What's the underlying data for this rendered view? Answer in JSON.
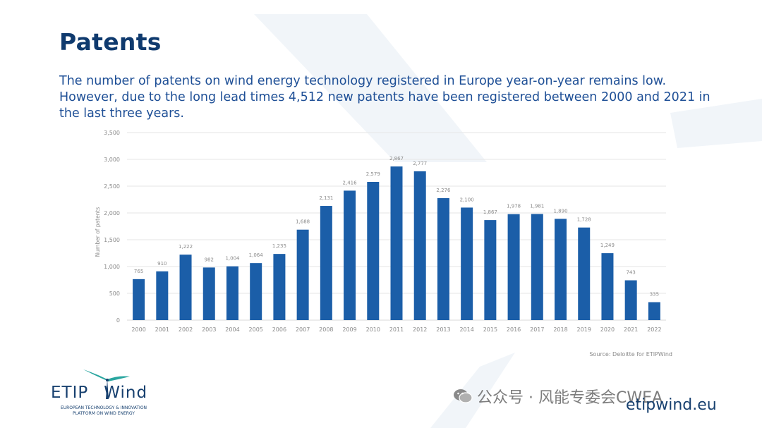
{
  "slide": {
    "title": "Patents",
    "subtitle": "The number of patents on wind energy technology registered in Europe year-on-year remains low. However, due to the long lead times 4,512 new patents have been registered between 2000 and 2021 in the last three years.",
    "source": "Source: Deloitte for ETIPWind",
    "colors": {
      "title": "#0f3a6e",
      "bar": "#1b5ea8",
      "text": "#1e4f96"
    }
  },
  "logo": {
    "name_left": "ETIP",
    "name_right": "Wind",
    "tagline_line1": "EUROPEAN TECHNOLOGY & INNOVATION",
    "tagline_line2": "PLATFORM ON WIND ENERGY"
  },
  "footer": {
    "website": "etipwind.eu",
    "watermark": "公众号 · 风能专委会CWEA",
    "wechat_icon": "wechat-icon"
  },
  "chart_data": {
    "type": "bar",
    "title": "",
    "xlabel": "",
    "ylabel": "Number of patents",
    "ylim": [
      0,
      3500
    ],
    "yticks": [
      0,
      500,
      1000,
      1500,
      2000,
      2500,
      3000,
      3500
    ],
    "ytick_labels": [
      "0",
      "500",
      "1,000",
      "1,500",
      "2,000",
      "2,500",
      "3,000",
      "3,500"
    ],
    "grid": true,
    "categories": [
      "2000",
      "2001",
      "2002",
      "2003",
      "2004",
      "2005",
      "2006",
      "2007",
      "2008",
      "2009",
      "2010",
      "2011",
      "2012",
      "2013",
      "2014",
      "2015",
      "2016",
      "2017",
      "2018",
      "2019",
      "2020",
      "2021",
      "2022"
    ],
    "values": [
      765,
      910,
      1222,
      982,
      1004,
      1064,
      1235,
      1688,
      2131,
      2416,
      2579,
      2867,
      2777,
      2276,
      2100,
      1867,
      1978,
      1981,
      1890,
      1728,
      1249,
      743,
      335
    ],
    "value_labels": [
      "765",
      "910",
      "1,222",
      "982",
      "1,004",
      "1,064",
      "1,235",
      "1,688",
      "2,131",
      "2,416",
      "2,579",
      "2,867",
      "2,777",
      "2,276",
      "2,100",
      "1,867",
      "1,978",
      "1,981",
      "1,890",
      "1,728",
      "1,249",
      "743",
      "335"
    ]
  }
}
